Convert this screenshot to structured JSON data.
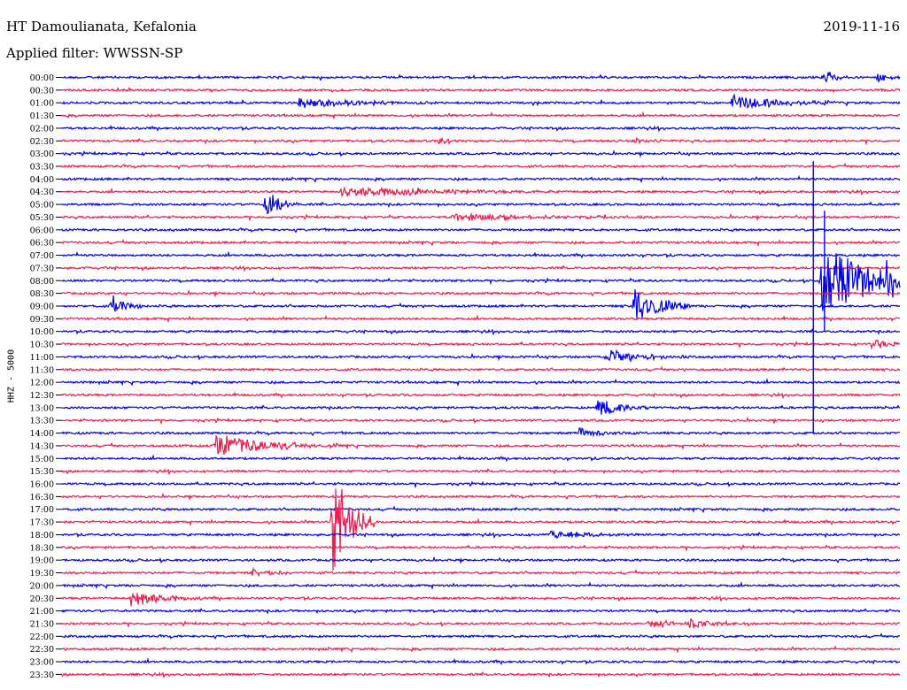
{
  "header": {
    "station": "HT Damoulianata, Kefalonia",
    "date": "2019-11-16",
    "filter": "Applied filter: WWSSN-SP"
  },
  "chart_data": {
    "type": "line",
    "ylabel": "HHZ - 5000",
    "row_labels": [
      "00:00",
      "00:30",
      "01:00",
      "01:30",
      "02:00",
      "02:30",
      "03:00",
      "03:30",
      "04:00",
      "04:30",
      "05:00",
      "05:30",
      "06:00",
      "06:30",
      "07:00",
      "07:30",
      "08:00",
      "08:30",
      "09:00",
      "09:30",
      "10:00",
      "10:30",
      "11:00",
      "11:30",
      "12:00",
      "12:30",
      "13:00",
      "13:30",
      "14:00",
      "14:30",
      "15:00",
      "15:30",
      "16:00",
      "16:30",
      "17:00",
      "17:30",
      "18:00",
      "18:30",
      "19:00",
      "19:30",
      "20:00",
      "20:30",
      "21:00",
      "21:30",
      "22:00",
      "22:30",
      "23:00",
      "23:30"
    ],
    "trace_colors": [
      "#0000ee",
      "#ee1c4e"
    ],
    "x_range_minutes": [
      0,
      30
    ],
    "events": [
      {
        "row": 0,
        "minute": 27.3,
        "amplitude": 9,
        "duration": 0.4
      },
      {
        "row": 0,
        "minute": 29.2,
        "amplitude": 6,
        "duration": 0.5
      },
      {
        "row": 2,
        "minute": 8.5,
        "amplitude": 6,
        "duration": 2.0
      },
      {
        "row": 2,
        "minute": 24.0,
        "amplitude": 9,
        "duration": 1.5
      },
      {
        "row": 5,
        "minute": 13.5,
        "amplitude": 4,
        "duration": 0.6
      },
      {
        "row": 5,
        "minute": 20.5,
        "amplitude": 3,
        "duration": 0.5
      },
      {
        "row": 9,
        "minute": 10.0,
        "amplitude": 7,
        "duration": 3.0
      },
      {
        "row": 10,
        "minute": 7.3,
        "amplitude": 18,
        "duration": 0.5
      },
      {
        "row": 11,
        "minute": 14.0,
        "amplitude": 4,
        "duration": 3.0
      },
      {
        "row": 16,
        "minute": 27.2,
        "amplitude": 48,
        "duration": 1.5
      },
      {
        "row": 16,
        "minute": 29.5,
        "amplitude": 16,
        "duration": 0.6
      },
      {
        "row": 18,
        "minute": 1.8,
        "amplitude": 12,
        "duration": 0.5
      },
      {
        "row": 18,
        "minute": 20.5,
        "amplitude": 24,
        "duration": 0.8
      },
      {
        "row": 21,
        "minute": 29.0,
        "amplitude": 5,
        "duration": 1.0
      },
      {
        "row": 22,
        "minute": 19.5,
        "amplitude": 8,
        "duration": 1.2
      },
      {
        "row": 26,
        "minute": 19.2,
        "amplitude": 12,
        "duration": 0.8
      },
      {
        "row": 28,
        "minute": 18.5,
        "amplitude": 6,
        "duration": 0.8
      },
      {
        "row": 29,
        "minute": 5.5,
        "amplitude": 14,
        "duration": 1.8
      },
      {
        "row": 35,
        "minute": 9.7,
        "amplitude": 64,
        "duration": 0.6
      },
      {
        "row": 36,
        "minute": 17.5,
        "amplitude": 5,
        "duration": 1.5
      },
      {
        "row": 39,
        "minute": 6.8,
        "amplitude": 5,
        "duration": 0.8
      },
      {
        "row": 41,
        "minute": 2.5,
        "amplitude": 12,
        "duration": 1.0
      },
      {
        "row": 43,
        "minute": 21.0,
        "amplitude": 5,
        "duration": 1.0
      },
      {
        "row": 43,
        "minute": 22.5,
        "amplitude": 6,
        "duration": 0.8
      }
    ],
    "long_spikes": [
      {
        "minute": 26.9,
        "from_row": 6.6,
        "to_row": 28.0
      },
      {
        "minute": 27.3,
        "from_row": 10.5,
        "to_row": 20.0
      }
    ]
  }
}
